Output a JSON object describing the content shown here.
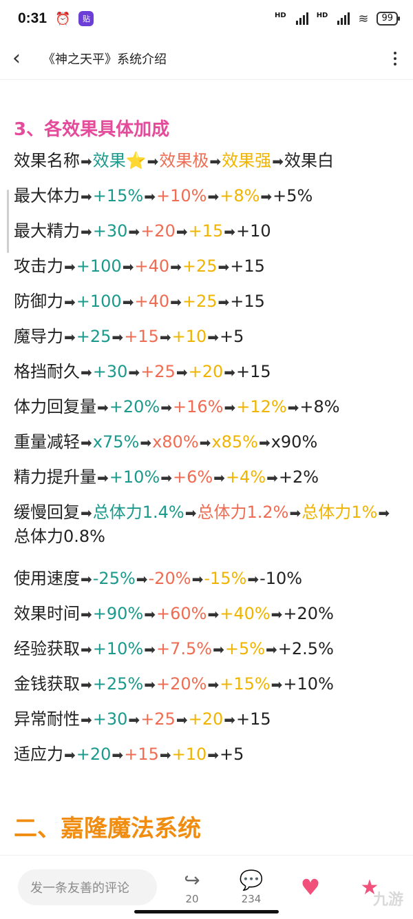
{
  "status": {
    "time": "0:31",
    "alarm_icon": "alarm-icon",
    "app_badge": "贴",
    "battery": "99",
    "hd1": "HD",
    "hd2": "HD"
  },
  "header": {
    "title": "《神之天平》系统介绍"
  },
  "section_heading": "3、各效果具体加成",
  "effects": [
    {
      "name": "效果名称",
      "v1": "效果",
      "v2": "效果极",
      "v3": "效果强",
      "v4": "效果白"
    },
    {
      "name": "最大体力",
      "v1": "+15%",
      "v2": "+10%",
      "v3": "+8%",
      "v4": "+5%"
    },
    {
      "name": "最大精力",
      "v1": "+30",
      "v2": "+20",
      "v3": "+15",
      "v4": "+10"
    },
    {
      "name": "攻击力",
      "v1": "+100",
      "v2": "+40",
      "v3": "+25",
      "v4": "+15"
    },
    {
      "name": "防御力",
      "v1": "+100",
      "v2": "+40",
      "v3": "+25",
      "v4": "+15"
    },
    {
      "name": "魔导力",
      "v1": "+25",
      "v2": "+15",
      "v3": "+10",
      "v4": "+5"
    },
    {
      "name": "格挡耐久",
      "v1": "+30",
      "v2": "+25",
      "v3": "+20",
      "v4": "+15"
    },
    {
      "name": "体力回复量",
      "v1": "+20%",
      "v2": "+16%",
      "v3": "+12%",
      "v4": "+8%"
    },
    {
      "name": "重量减轻",
      "v1": "x75%",
      "v2": "x80%",
      "v3": "x85%",
      "v4": "x90%"
    },
    {
      "name": "精力提升量",
      "v1": "+10%",
      "v2": "+6%",
      "v3": "+4%",
      "v4": "+2%"
    },
    {
      "name": "缓慢回复",
      "v1": "总体力1.4%",
      "v2": "总体力1.2%",
      "v3": "总体力1%",
      "v4": "总体力0.8%"
    },
    {
      "name": "使用速度",
      "v1": "-25%",
      "v2": "-20%",
      "v3": "-15%",
      "v4": "-10%"
    },
    {
      "name": "效果时间",
      "v1": "+90%",
      "v2": "+60%",
      "v3": "+40%",
      "v4": "+20%"
    },
    {
      "name": "经验获取",
      "v1": "+10%",
      "v2": "+7.5%",
      "v3": "+5%",
      "v4": "+2.5%"
    },
    {
      "name": "金钱获取",
      "v1": "+25%",
      "v2": "+20%",
      "v3": "+15%",
      "v4": "+10%"
    },
    {
      "name": "异常耐性",
      "v1": "+30",
      "v2": "+25",
      "v3": "+20",
      "v4": "+15"
    },
    {
      "name": "适应力",
      "v1": "+20",
      "v2": "+15",
      "v3": "+10",
      "v4": "+5"
    }
  ],
  "next_heading": "二、嘉隆魔法系统",
  "bottom": {
    "comment_placeholder": "发一条友善的评论",
    "share_count": "20",
    "comment_count": "234"
  },
  "watermark": "九游",
  "colors": {
    "tier1": "#1a9a8c",
    "tier2": "#ef6c52",
    "tier3": "#f0b400",
    "heading": "#e44b9a",
    "h2": "#f08c10"
  }
}
